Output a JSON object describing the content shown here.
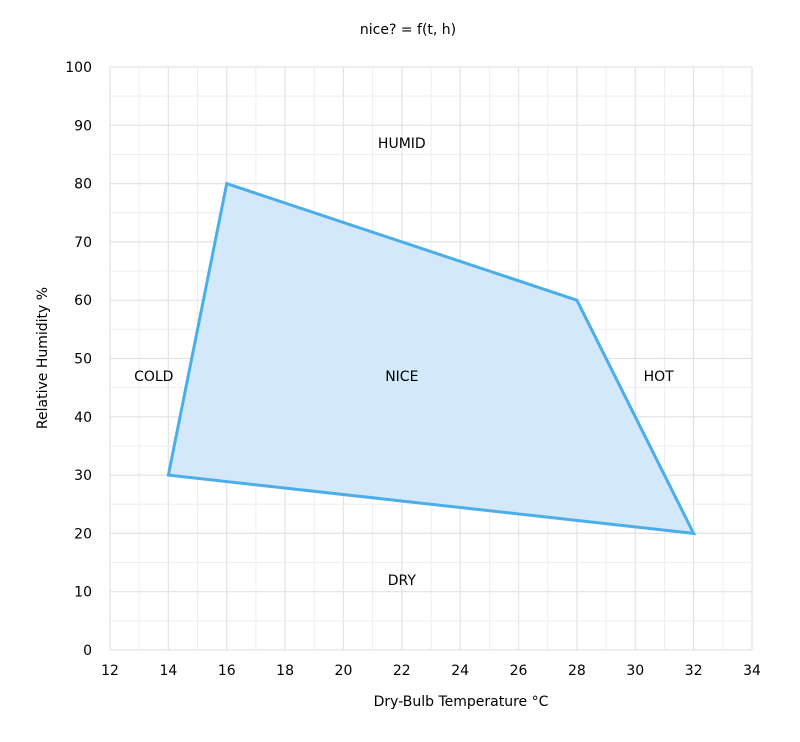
{
  "chart_data": {
    "type": "area",
    "title": "nice? = f(t, h)",
    "xlabel": "Dry-Bulb Temperature °C",
    "ylabel": "Relative Humidity %",
    "xlim": [
      12,
      34
    ],
    "ylim": [
      0,
      100
    ],
    "x_ticks": [
      "12",
      "14",
      "16",
      "18",
      "20",
      "22",
      "24",
      "26",
      "28",
      "30",
      "32",
      "34"
    ],
    "y_ticks": [
      "0",
      "10",
      "20",
      "30",
      "40",
      "50",
      "60",
      "70",
      "80",
      "90",
      "100"
    ],
    "grid": true,
    "polygon": {
      "x": [
        14,
        16,
        28,
        32
      ],
      "y": [
        30,
        80,
        60,
        20
      ],
      "color": "#4aaeea",
      "fill": "#d3e8f8"
    },
    "annotations": [
      {
        "text": "HUMID",
        "x": 22,
        "y": 87
      },
      {
        "text": "COLD",
        "x": 13.5,
        "y": 47
      },
      {
        "text": "NICE",
        "x": 22,
        "y": 47
      },
      {
        "text": "HOT",
        "x": 30.8,
        "y": 47
      },
      {
        "text": "DRY",
        "x": 22,
        "y": 12
      }
    ]
  }
}
